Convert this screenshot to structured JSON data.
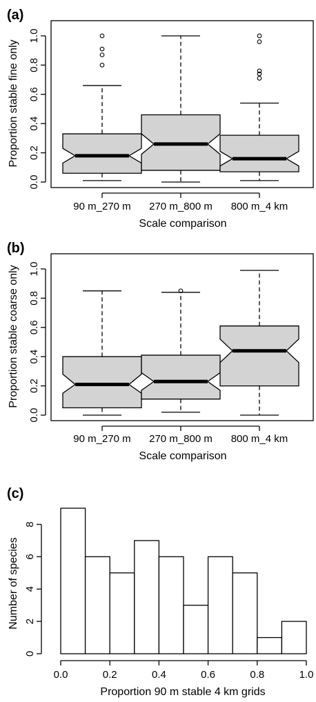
{
  "chart_data": [
    {
      "type": "boxplot",
      "panel_label": "(a)",
      "xlabel": "Scale comparison",
      "ylabel": "Proportion stable fine only",
      "ylim": [
        0,
        1
      ],
      "yticks": [
        "0.0",
        "0.2",
        "0.4",
        "0.6",
        "0.8",
        "1.0"
      ],
      "notched": true,
      "categories": [
        "90 m_270 m",
        "270 m_800 m",
        "800 m_4 km"
      ],
      "boxes": [
        {
          "category": "90 m_270 m",
          "whisker_low": 0.01,
          "q1": 0.06,
          "median": 0.18,
          "q3": 0.33,
          "whisker_high": 0.66,
          "notch_low": 0.13,
          "notch_high": 0.23,
          "outliers": [
            0.8,
            0.87,
            0.91,
            1.0
          ]
        },
        {
          "category": "270 m_800 m",
          "whisker_low": 0.0,
          "q1": 0.08,
          "median": 0.26,
          "q3": 0.46,
          "whisker_high": 1.0,
          "notch_low": 0.19,
          "notch_high": 0.33,
          "outliers": []
        },
        {
          "category": "800 m_4 km",
          "whisker_low": 0.01,
          "q1": 0.07,
          "median": 0.16,
          "q3": 0.32,
          "whisker_high": 0.54,
          "notch_low": 0.11,
          "notch_high": 0.21,
          "outliers": [
            0.71,
            0.74,
            0.76,
            0.96,
            1.0
          ]
        }
      ],
      "fill_color": "#d3d3d3"
    },
    {
      "type": "boxplot",
      "panel_label": "(b)",
      "xlabel": "Scale comparison",
      "ylabel": "Proportion stable coarse only",
      "ylim": [
        0,
        1
      ],
      "yticks": [
        "0.0",
        "0.2",
        "0.4",
        "0.6",
        "0.8",
        "1.0"
      ],
      "notched": true,
      "categories": [
        "90 m_270 m",
        "270 m_800 m",
        "800 m_4 km"
      ],
      "boxes": [
        {
          "category": "90 m_270 m",
          "whisker_low": 0.0,
          "q1": 0.05,
          "median": 0.21,
          "q3": 0.4,
          "whisker_high": 0.85,
          "notch_low": 0.15,
          "notch_high": 0.28,
          "outliers": []
        },
        {
          "category": "270 m_800 m",
          "whisker_low": 0.02,
          "q1": 0.11,
          "median": 0.23,
          "q3": 0.41,
          "whisker_high": 0.84,
          "notch_low": 0.17,
          "notch_high": 0.29,
          "outliers": [
            0.85
          ]
        },
        {
          "category": "800 m_4 km",
          "whisker_low": 0.0,
          "q1": 0.2,
          "median": 0.44,
          "q3": 0.61,
          "whisker_high": 0.99,
          "notch_low": 0.36,
          "notch_high": 0.52,
          "outliers": []
        }
      ],
      "fill_color": "#d3d3d3"
    },
    {
      "type": "histogram",
      "panel_label": "(c)",
      "xlabel": "Proportion 90 m stable 4 km grids",
      "ylabel": "Number of species",
      "xlim": [
        0,
        1
      ],
      "ylim": [
        0,
        9
      ],
      "xticks": [
        "0.0",
        "0.2",
        "0.4",
        "0.6",
        "0.8",
        "1.0"
      ],
      "yticks": [
        "0",
        "2",
        "4",
        "6",
        "8"
      ],
      "bin_edges": [
        0.0,
        0.1,
        0.2,
        0.3,
        0.4,
        0.5,
        0.6,
        0.7,
        0.8,
        0.9,
        1.0
      ],
      "counts": [
        9,
        6,
        5,
        7,
        6,
        3,
        6,
        5,
        1,
        2
      ]
    }
  ]
}
